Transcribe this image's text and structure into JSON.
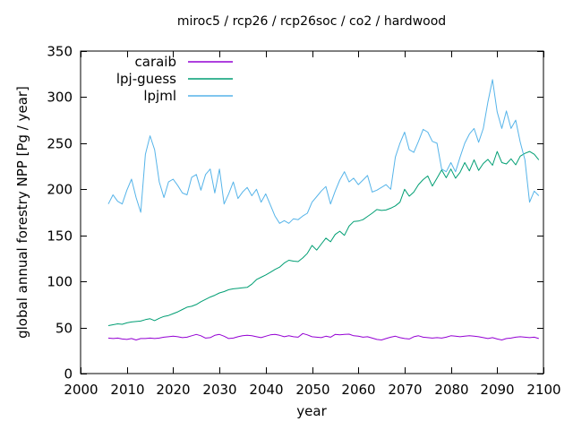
{
  "chart_data": {
    "type": "line",
    "title": "miroc5 / rcp26 / rcp26soc / co2 / hardwood",
    "xlabel": "year",
    "ylabel": "global annual forestry NPP [Pg / year]",
    "xlim": [
      2000,
      2100
    ],
    "ylim": [
      0,
      350
    ],
    "xticks": [
      2000,
      2010,
      2020,
      2030,
      2040,
      2050,
      2060,
      2070,
      2080,
      2090,
      2100
    ],
    "yticks": [
      0,
      50,
      100,
      150,
      200,
      250,
      300,
      350
    ],
    "grid": false,
    "legend_position": "top-left-inside",
    "background_color": "#ffffff",
    "border_color": "#000000",
    "x_start_year": 2006,
    "x_step": 1,
    "series": [
      {
        "name": "caraib",
        "color": "#9400d3",
        "values": [
          38.5,
          38,
          38.5,
          37.5,
          37,
          38,
          36.5,
          38,
          38,
          38.5,
          38,
          38.5,
          39.5,
          40,
          40.5,
          40,
          39,
          39.5,
          41,
          42.5,
          41,
          38.5,
          39,
          41.5,
          42.5,
          40.5,
          38,
          38.5,
          40,
          41,
          41.5,
          41,
          40,
          39,
          40.5,
          42,
          42.5,
          41.5,
          40,
          41,
          40,
          39.5,
          43.5,
          42,
          40,
          39.5,
          39,
          40.5,
          39.5,
          42.5,
          42,
          42.5,
          42.8,
          41,
          40.5,
          39.5,
          40,
          38.5,
          37,
          36.5,
          38,
          39.5,
          40.5,
          39,
          38,
          37.5,
          40,
          41,
          39.5,
          39,
          38.5,
          39,
          38.5,
          39.5,
          41,
          40.5,
          40,
          40.5,
          41,
          40.5,
          40,
          39,
          38,
          39,
          37.5,
          36.5,
          38,
          38.5,
          39.5,
          40,
          39.5,
          39,
          39.5,
          38
        ]
      },
      {
        "name": "lpj-guess",
        "color": "#009e73",
        "values": [
          52,
          53,
          54,
          53.5,
          55,
          56,
          56.5,
          57,
          58.5,
          59.5,
          57.5,
          60,
          62,
          63,
          65,
          67,
          69.5,
          72,
          73,
          75,
          78,
          80.5,
          83,
          85,
          87.5,
          89,
          91,
          92,
          92.5,
          93,
          93.5,
          97,
          102,
          104.5,
          107,
          110,
          113,
          115.5,
          120,
          123,
          122,
          121.5,
          125.5,
          130.5,
          139,
          134,
          140.5,
          147,
          143,
          151,
          154.5,
          150,
          160,
          165,
          165.5,
          167,
          170.5,
          174,
          178,
          177,
          177.5,
          179.5,
          182,
          186,
          200,
          192.5,
          197,
          205,
          210.5,
          214.5,
          203.5,
          212,
          221,
          212.5,
          222,
          212,
          218.5,
          229,
          220,
          232,
          220.5,
          228,
          232.5,
          226,
          241,
          229,
          227.5,
          233,
          226.5,
          236,
          239,
          241,
          238,
          232
        ]
      },
      {
        "name": "lpjml",
        "color": "#56b4e9",
        "values": [
          184,
          194,
          187,
          184,
          199,
          211,
          191,
          175,
          238,
          258,
          243,
          208,
          191,
          208,
          211,
          204,
          196,
          194,
          213,
          216,
          199,
          216,
          222,
          196,
          222,
          184,
          195,
          208,
          190,
          197,
          202,
          193,
          200,
          186,
          195,
          183,
          171,
          163,
          166,
          163,
          168,
          167,
          171,
          174,
          186,
          192,
          198,
          203,
          184,
          198,
          210,
          219,
          208,
          212,
          205,
          210,
          215,
          197,
          199,
          202,
          205,
          200,
          235,
          250,
          262,
          243,
          240,
          252,
          265,
          262,
          252,
          250,
          222,
          219,
          229,
          219,
          235,
          250,
          260,
          266,
          251,
          266,
          295,
          319,
          284,
          266,
          285,
          266,
          275,
          251,
          232,
          186,
          198,
          193
        ]
      }
    ]
  }
}
